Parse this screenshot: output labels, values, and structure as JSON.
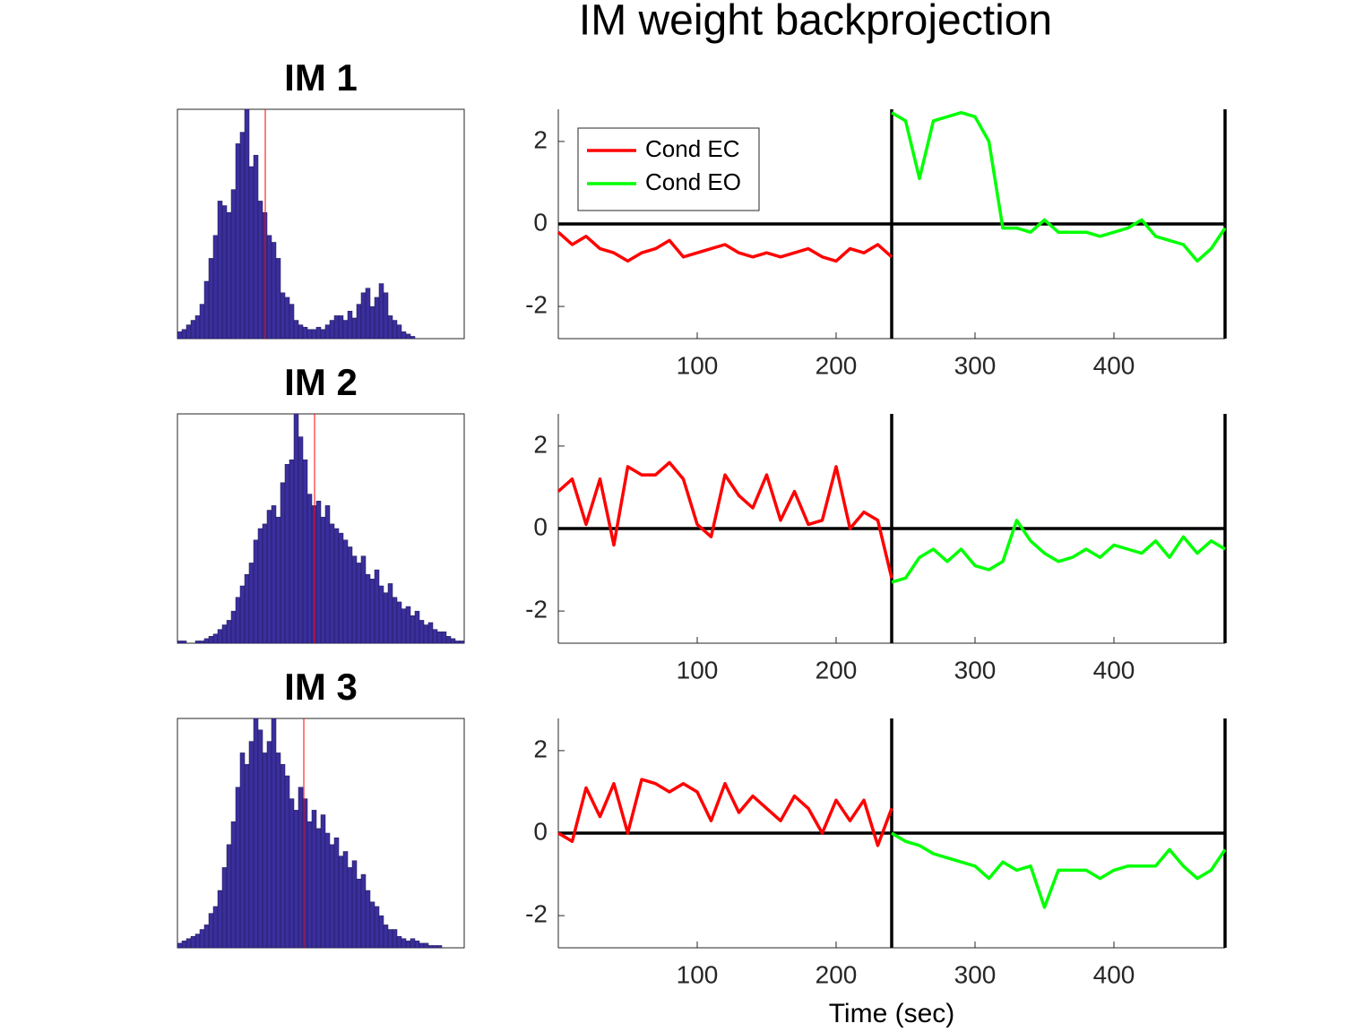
{
  "title": "IM weight backprojection",
  "chart_data": [
    {
      "type": "histogram",
      "title": "IM 1",
      "color": "#3a2f9c",
      "xlim": [
        0,
        64
      ],
      "ylim": [
        0,
        100
      ],
      "vline": 19.6,
      "vline_color": "#ff0000",
      "bins": [
        0,
        1,
        2,
        3,
        4,
        5,
        6,
        7,
        8,
        9,
        10,
        11,
        12,
        13,
        14,
        15,
        16,
        17,
        18,
        19,
        20,
        21,
        22,
        23,
        24,
        25,
        26,
        27,
        28,
        29,
        30,
        31,
        32,
        33,
        34,
        35,
        36,
        37,
        38,
        39,
        40,
        41,
        42,
        43,
        44,
        45,
        46,
        47,
        48,
        49,
        50,
        51,
        52,
        53,
        54,
        55,
        56,
        57,
        58,
        59,
        60,
        61,
        62,
        63,
        64
      ],
      "values": [
        3,
        4,
        6,
        8,
        10,
        15,
        25,
        35,
        45,
        60,
        58,
        55,
        65,
        85,
        90,
        100,
        75,
        80,
        60,
        55,
        45,
        42,
        35,
        20,
        18,
        15,
        8,
        6,
        5,
        4,
        4,
        5,
        4,
        6,
        8,
        10,
        10,
        8,
        12,
        9,
        15,
        20,
        22,
        14,
        18,
        24,
        20,
        10,
        8,
        6,
        3,
        2,
        1,
        0,
        0,
        0,
        0,
        0,
        0,
        0,
        0,
        0,
        0,
        0
      ]
    },
    {
      "type": "line",
      "xlim": [
        0,
        480
      ],
      "ylim": [
        -2.78,
        2.78
      ],
      "xticks": [
        100,
        200,
        300,
        400
      ],
      "yticks": [
        -2,
        0,
        2
      ],
      "vlines": [
        240,
        480
      ],
      "hline": 0,
      "legend": "top-left",
      "series": [
        {
          "name": "Cond EC",
          "color": "#ff0000",
          "x": [
            0,
            10,
            20,
            30,
            40,
            50,
            60,
            70,
            80,
            90,
            100,
            110,
            120,
            130,
            140,
            150,
            160,
            170,
            180,
            190,
            200,
            210,
            220,
            230,
            240
          ],
          "values": [
            -0.2,
            -0.5,
            -0.3,
            -0.6,
            -0.7,
            -0.9,
            -0.7,
            -0.6,
            -0.4,
            -0.8,
            -0.7,
            -0.6,
            -0.5,
            -0.7,
            -0.8,
            -0.7,
            -0.8,
            -0.7,
            -0.6,
            -0.8,
            -0.9,
            -0.6,
            -0.7,
            -0.5,
            -0.8
          ]
        },
        {
          "name": "Cond EO",
          "color": "#00ff00",
          "x": [
            240,
            250,
            260,
            270,
            280,
            290,
            300,
            310,
            320,
            330,
            340,
            350,
            360,
            370,
            380,
            390,
            400,
            410,
            420,
            430,
            440,
            450,
            460,
            470,
            480
          ],
          "values": [
            2.7,
            2.5,
            1.1,
            2.5,
            2.6,
            2.7,
            2.6,
            2.0,
            -0.1,
            -0.1,
            -0.2,
            0.1,
            -0.2,
            -0.2,
            -0.2,
            -0.3,
            -0.2,
            -0.1,
            0.1,
            -0.3,
            -0.4,
            -0.5,
            -0.9,
            -0.6,
            -0.1
          ]
        }
      ]
    },
    {
      "type": "histogram",
      "title": "IM 2",
      "color": "#3a2f9c",
      "xlim": [
        0,
        64
      ],
      "ylim": [
        0,
        100
      ],
      "vline": 30.6,
      "vline_color": "#ff0000",
      "bins": [
        0,
        1,
        2,
        3,
        4,
        5,
        6,
        7,
        8,
        9,
        10,
        11,
        12,
        13,
        14,
        15,
        16,
        17,
        18,
        19,
        20,
        21,
        22,
        23,
        24,
        25,
        26,
        27,
        28,
        29,
        30,
        31,
        32,
        33,
        34,
        35,
        36,
        37,
        38,
        39,
        40,
        41,
        42,
        43,
        44,
        45,
        46,
        47,
        48,
        49,
        50,
        51,
        52,
        53,
        54,
        55,
        56,
        57,
        58,
        59,
        60,
        61,
        62,
        63,
        64
      ],
      "values": [
        1,
        1,
        0,
        0,
        1,
        1,
        2,
        3,
        4,
        6,
        8,
        10,
        14,
        20,
        25,
        30,
        35,
        45,
        50,
        52,
        58,
        60,
        55,
        70,
        78,
        80,
        100,
        90,
        80,
        65,
        60,
        62,
        55,
        60,
        52,
        50,
        48,
        45,
        42,
        38,
        35,
        38,
        30,
        28,
        32,
        25,
        22,
        26,
        20,
        18,
        15,
        16,
        12,
        14,
        10,
        8,
        9,
        6,
        5,
        5,
        3,
        2,
        1,
        1
      ]
    },
    {
      "type": "line",
      "xlim": [
        0,
        480
      ],
      "ylim": [
        -2.78,
        2.78
      ],
      "xticks": [
        100,
        200,
        300,
        400
      ],
      "yticks": [
        -2,
        0,
        2
      ],
      "vlines": [
        240,
        480
      ],
      "hline": 0,
      "series": [
        {
          "color": "#ff0000",
          "x": [
            0,
            10,
            20,
            30,
            40,
            50,
            60,
            70,
            80,
            90,
            100,
            110,
            120,
            130,
            140,
            150,
            160,
            170,
            180,
            190,
            200,
            210,
            220,
            230,
            240
          ],
          "values": [
            0.9,
            1.2,
            0.1,
            1.2,
            -0.4,
            1.5,
            1.3,
            1.3,
            1.6,
            1.2,
            0.1,
            -0.2,
            1.3,
            0.8,
            0.5,
            1.3,
            0.2,
            0.9,
            0.1,
            0.2,
            1.5,
            0.0,
            0.4,
            0.2,
            -1.2
          ]
        },
        {
          "color": "#00ff00",
          "x": [
            240,
            250,
            260,
            270,
            280,
            290,
            300,
            310,
            320,
            330,
            340,
            350,
            360,
            370,
            380,
            390,
            400,
            410,
            420,
            430,
            440,
            450,
            460,
            470,
            480
          ],
          "values": [
            -1.3,
            -1.2,
            -0.7,
            -0.5,
            -0.8,
            -0.5,
            -0.9,
            -1.0,
            -0.8,
            0.2,
            -0.3,
            -0.6,
            -0.8,
            -0.7,
            -0.5,
            -0.7,
            -0.4,
            -0.5,
            -0.6,
            -0.3,
            -0.7,
            -0.2,
            -0.6,
            -0.3,
            -0.5
          ]
        }
      ]
    },
    {
      "type": "histogram",
      "title": "IM 3",
      "color": "#3a2f9c",
      "xlim": [
        0,
        64
      ],
      "ylim": [
        0,
        100
      ],
      "vline": 28.2,
      "vline_color": "#ff0000",
      "bins": [
        0,
        1,
        2,
        3,
        4,
        5,
        6,
        7,
        8,
        9,
        10,
        11,
        12,
        13,
        14,
        15,
        16,
        17,
        18,
        19,
        20,
        21,
        22,
        23,
        24,
        25,
        26,
        27,
        28,
        29,
        30,
        31,
        32,
        33,
        34,
        35,
        36,
        37,
        38,
        39,
        40,
        41,
        42,
        43,
        44,
        45,
        46,
        47,
        48,
        49,
        50,
        51,
        52,
        53,
        54,
        55,
        56,
        57,
        58,
        59,
        60,
        61,
        62,
        63,
        64
      ],
      "values": [
        2,
        3,
        4,
        5,
        6,
        8,
        10,
        15,
        18,
        25,
        35,
        45,
        55,
        70,
        85,
        80,
        90,
        100,
        95,
        85,
        90,
        100,
        85,
        80,
        75,
        65,
        60,
        70,
        65,
        55,
        60,
        52,
        58,
        50,
        45,
        48,
        40,
        42,
        35,
        38,
        30,
        32,
        25,
        20,
        18,
        14,
        10,
        8,
        8,
        5,
        4,
        3,
        4,
        3,
        2,
        2,
        1,
        1,
        1,
        0,
        0,
        0,
        0,
        0
      ]
    },
    {
      "type": "line",
      "xlim": [
        0,
        480
      ],
      "ylim": [
        -2.78,
        2.78
      ],
      "xticks": [
        100,
        200,
        300,
        400
      ],
      "yticks": [
        -2,
        0,
        2
      ],
      "vlines": [
        240,
        480
      ],
      "hline": 0,
      "xlabel": "Time (sec)",
      "series": [
        {
          "color": "#ff0000",
          "x": [
            0,
            10,
            20,
            30,
            40,
            50,
            60,
            70,
            80,
            90,
            100,
            110,
            120,
            130,
            140,
            150,
            160,
            170,
            180,
            190,
            200,
            210,
            220,
            230,
            240
          ],
          "values": [
            0,
            -0.2,
            1.1,
            0.4,
            1.2,
            0.0,
            1.3,
            1.2,
            1.0,
            1.2,
            1.0,
            0.3,
            1.2,
            0.5,
            0.9,
            0.6,
            0.3,
            0.9,
            0.6,
            0.0,
            0.8,
            0.3,
            0.8,
            -0.3,
            0.6
          ]
        },
        {
          "color": "#00ff00",
          "x": [
            240,
            250,
            260,
            270,
            280,
            290,
            300,
            310,
            320,
            330,
            340,
            350,
            360,
            370,
            380,
            390,
            400,
            410,
            420,
            430,
            440,
            450,
            460,
            470,
            480
          ],
          "values": [
            0.0,
            -0.2,
            -0.3,
            -0.5,
            -0.6,
            -0.7,
            -0.8,
            -1.1,
            -0.7,
            -0.9,
            -0.8,
            -1.8,
            -0.9,
            -0.9,
            -0.9,
            -1.1,
            -0.9,
            -0.8,
            -0.8,
            -0.8,
            -0.4,
            -0.8,
            -1.1,
            -0.9,
            -0.4
          ]
        }
      ]
    }
  ]
}
